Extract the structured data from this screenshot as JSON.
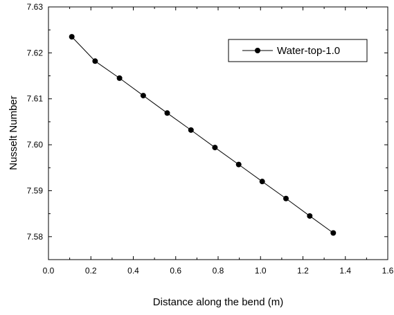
{
  "chart_data": {
    "type": "line",
    "xlabel": "Distance along the bend (m)",
    "ylabel": "Nusselt Number",
    "xlim": [
      0.0,
      1.6
    ],
    "ylim": [
      7.575,
      7.63
    ],
    "x_ticks": [
      "0.0",
      "0.2",
      "0.4",
      "0.6",
      "0.8",
      "1.0",
      "1.2",
      "1.4",
      "1.6"
    ],
    "y_ticks": [
      "7.58",
      "7.59",
      "7.60",
      "7.61",
      "7.62",
      "7.63"
    ],
    "legend_position": "top-right",
    "series": [
      {
        "name": "Water-top-1.0",
        "color": "#000000",
        "marker": "circle",
        "x": [
          0.11,
          0.22,
          0.335,
          0.447,
          0.56,
          0.672,
          0.785,
          0.897,
          1.008,
          1.12,
          1.232,
          1.343
        ],
        "y": [
          7.6235,
          7.6182,
          7.6145,
          7.6107,
          7.6069,
          7.6032,
          7.5994,
          7.5957,
          7.592,
          7.5883,
          7.5845,
          7.5808
        ]
      }
    ]
  }
}
